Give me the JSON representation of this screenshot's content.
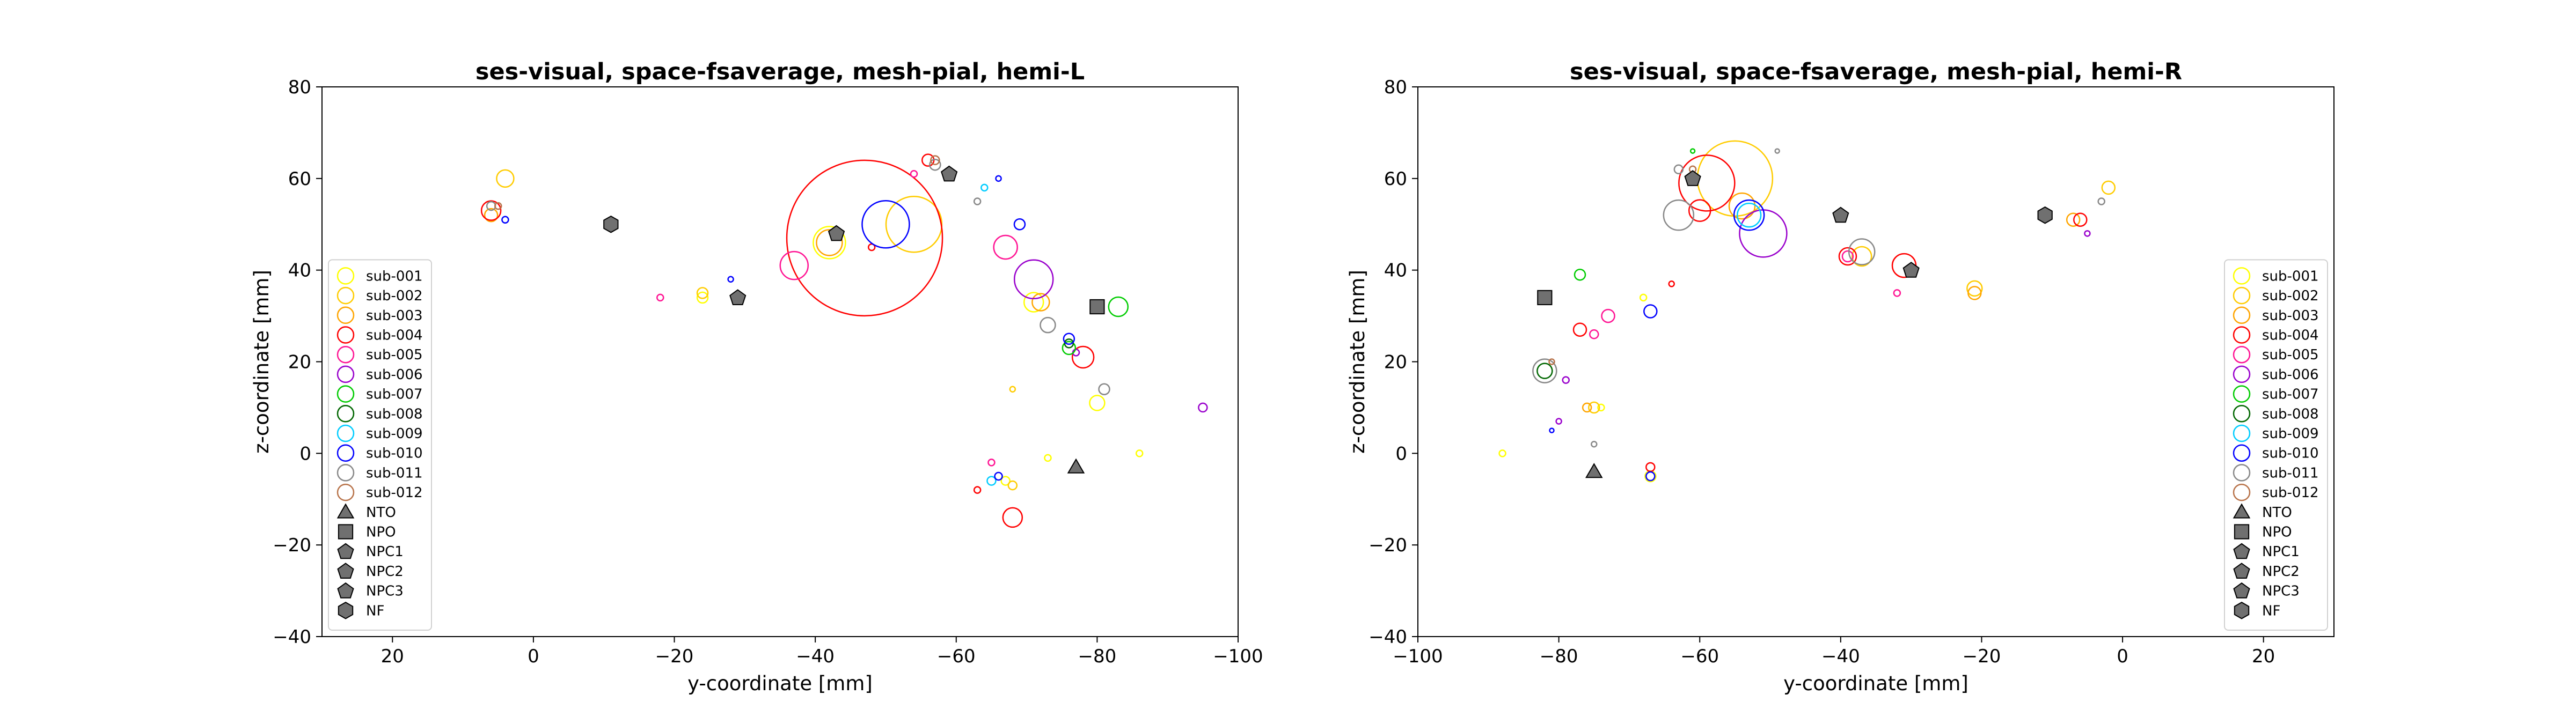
{
  "chart_data": [
    {
      "type": "scatter",
      "title": "ses-visual, space-fsaverage, mesh-pial, hemi-L",
      "xlabel": "y-coordinate [mm]",
      "ylabel": "z-coordinate [mm]",
      "xlim": [
        30,
        -100
      ],
      "ylim": [
        -40,
        80
      ],
      "xticks": [
        20,
        0,
        -20,
        -40,
        -60,
        -80,
        -100
      ],
      "xtick_labels": [
        "20",
        "0",
        "−20",
        "−40",
        "−60",
        "−80",
        "−100"
      ],
      "yticks": [
        80,
        60,
        40,
        20,
        0,
        -20,
        -40
      ],
      "ytick_labels": [
        "80",
        "60",
        "40",
        "20",
        "0",
        "−20",
        "−40"
      ],
      "grid": false,
      "legend_position": "lower-left",
      "legend": [
        "sub-001",
        "sub-002",
        "sub-003",
        "sub-004",
        "sub-005",
        "sub-006",
        "sub-007",
        "sub-008",
        "sub-009",
        "sub-010",
        "sub-011",
        "sub-012",
        "NTO",
        "NPO",
        "NPC1",
        "NPC2",
        "NPC3",
        "NF"
      ],
      "series": [
        {
          "name": "sub-001",
          "color": "#ffff00",
          "points": [
            {
              "x": -42,
              "y": 46,
              "r": 30
            },
            {
              "x": -71,
              "y": 33,
              "r": 18
            },
            {
              "x": -80,
              "y": 11,
              "r": 14
            },
            {
              "x": -24,
              "y": 34,
              "r": 10
            },
            {
              "x": -67,
              "y": -6,
              "r": 8
            },
            {
              "x": -86,
              "y": 0,
              "r": 6
            },
            {
              "x": -73,
              "y": -1,
              "r": 6
            }
          ]
        },
        {
          "name": "sub-002",
          "color": "#ffcc00",
          "points": [
            {
              "x": -54,
              "y": 50,
              "r": 52
            },
            {
              "x": 4,
              "y": 60,
              "r": 16
            },
            {
              "x": -24,
              "y": 35,
              "r": 10
            },
            {
              "x": -68,
              "y": -7,
              "r": 8
            },
            {
              "x": -68,
              "y": 14,
              "r": 5
            }
          ]
        },
        {
          "name": "sub-003",
          "color": "#ffa500",
          "points": [
            {
              "x": -72,
              "y": 33,
              "r": 16
            },
            {
              "x": -42,
              "y": 46,
              "r": 24
            },
            {
              "x": 6,
              "y": 52,
              "r": 12
            }
          ]
        },
        {
          "name": "sub-004",
          "color": "#ff0000",
          "points": [
            {
              "x": -47,
              "y": 47,
              "r": 145
            },
            {
              "x": -78,
              "y": 21,
              "r": 20
            },
            {
              "x": -68,
              "y": -14,
              "r": 18
            },
            {
              "x": 6,
              "y": 53,
              "r": 18
            },
            {
              "x": -56,
              "y": 64,
              "r": 11
            },
            {
              "x": -48,
              "y": 45,
              "r": 6
            },
            {
              "x": -63,
              "y": -8,
              "r": 6
            }
          ]
        },
        {
          "name": "sub-005",
          "color": "#ff1493",
          "points": [
            {
              "x": -37,
              "y": 41,
              "r": 26
            },
            {
              "x": -67,
              "y": 45,
              "r": 22
            },
            {
              "x": -18,
              "y": 34,
              "r": 6
            },
            {
              "x": -54,
              "y": 61,
              "r": 6
            },
            {
              "x": -65,
              "y": -2,
              "r": 6
            }
          ]
        },
        {
          "name": "sub-006",
          "color": "#9900cc",
          "points": [
            {
              "x": -71,
              "y": 38,
              "r": 36
            },
            {
              "x": -95,
              "y": 10,
              "r": 8
            },
            {
              "x": -77,
              "y": 22,
              "r": 6
            }
          ]
        },
        {
          "name": "sub-007",
          "color": "#00cc00",
          "points": [
            {
              "x": -83,
              "y": 32,
              "r": 18
            },
            {
              "x": -76,
              "y": 23,
              "r": 12
            }
          ]
        },
        {
          "name": "sub-008",
          "color": "#006600",
          "points": [
            {
              "x": -76,
              "y": 24,
              "r": 8
            }
          ]
        },
        {
          "name": "sub-009",
          "color": "#00ccff",
          "points": [
            {
              "x": -64,
              "y": 58,
              "r": 6
            },
            {
              "x": -65,
              "y": -6,
              "r": 8
            }
          ]
        },
        {
          "name": "sub-010",
          "color": "#0000ff",
          "points": [
            {
              "x": -50,
              "y": 50,
              "r": 44
            },
            {
              "x": -69,
              "y": 50,
              "r": 10
            },
            {
              "x": -76,
              "y": 25,
              "r": 10
            },
            {
              "x": -66,
              "y": 60,
              "r": 5
            },
            {
              "x": -66,
              "y": -5,
              "r": 7
            },
            {
              "x": -28,
              "y": 38,
              "r": 5
            },
            {
              "x": 4,
              "y": 51,
              "r": 6
            }
          ]
        },
        {
          "name": "sub-011",
          "color": "#888888",
          "points": [
            {
              "x": -73,
              "y": 28,
              "r": 14
            },
            {
              "x": -81,
              "y": 14,
              "r": 10
            },
            {
              "x": -57,
              "y": 63,
              "r": 10
            },
            {
              "x": -63,
              "y": 55,
              "r": 6
            },
            {
              "x": 6,
              "y": 54,
              "r": 8
            }
          ]
        },
        {
          "name": "sub-012",
          "color": "#b8734a",
          "points": [
            {
              "x": -57,
              "y": 64,
              "r": 8
            },
            {
              "x": 5,
              "y": 54,
              "r": 6
            }
          ]
        }
      ],
      "landmarks": [
        {
          "name": "NTO",
          "shape": "triangle",
          "x": -77,
          "y": -3
        },
        {
          "name": "NPO",
          "shape": "square",
          "x": -80,
          "y": 32
        },
        {
          "name": "NPC1",
          "shape": "pentagon",
          "x": -43,
          "y": 48
        },
        {
          "name": "NPC2",
          "shape": "pentagon",
          "x": -59,
          "y": 61
        },
        {
          "name": "NPC3",
          "shape": "pentagon",
          "x": -29,
          "y": 34
        },
        {
          "name": "NF",
          "shape": "hexagon",
          "x": -11,
          "y": 50
        }
      ]
    },
    {
      "type": "scatter",
      "title": "ses-visual, space-fsaverage, mesh-pial, hemi-R",
      "xlabel": "y-coordinate [mm]",
      "ylabel": "z-coordinate [mm]",
      "xlim": [
        -100,
        30
      ],
      "ylim": [
        -40,
        80
      ],
      "xticks": [
        -100,
        -80,
        -60,
        -40,
        -20,
        0,
        20
      ],
      "xtick_labels": [
        "−100",
        "−80",
        "−60",
        "−40",
        "−20",
        "0",
        "20"
      ],
      "yticks": [
        80,
        60,
        40,
        20,
        0,
        -20,
        -40
      ],
      "ytick_labels": [
        "80",
        "60",
        "40",
        "20",
        "0",
        "−20",
        "−40"
      ],
      "grid": false,
      "legend_position": "lower-right",
      "legend": [
        "sub-001",
        "sub-002",
        "sub-003",
        "sub-004",
        "sub-005",
        "sub-006",
        "sub-007",
        "sub-008",
        "sub-009",
        "sub-010",
        "sub-011",
        "sub-012",
        "NTO",
        "NPO",
        "NPC1",
        "NPC2",
        "NPC3",
        "NF"
      ],
      "series": [
        {
          "name": "sub-001",
          "color": "#ffff00",
          "points": [
            {
              "x": -67,
              "y": -5,
              "r": 10
            },
            {
              "x": -88,
              "y": 0,
              "r": 6
            },
            {
              "x": -74,
              "y": 10,
              "r": 6
            },
            {
              "x": -68,
              "y": 34,
              "r": 6
            }
          ]
        },
        {
          "name": "sub-002",
          "color": "#ffcc00",
          "points": [
            {
              "x": -55,
              "y": 60,
              "r": 70
            },
            {
              "x": -37,
              "y": 43,
              "r": 18
            },
            {
              "x": -21,
              "y": 36,
              "r": 14
            },
            {
              "x": -2,
              "y": 58,
              "r": 12
            },
            {
              "x": -75,
              "y": 10,
              "r": 10
            }
          ]
        },
        {
          "name": "sub-003",
          "color": "#ffa500",
          "points": [
            {
              "x": -54,
              "y": 54,
              "r": 24
            },
            {
              "x": -21,
              "y": 35,
              "r": 12
            },
            {
              "x": -7,
              "y": 51,
              "r": 12
            },
            {
              "x": -76,
              "y": 10,
              "r": 8
            }
          ]
        },
        {
          "name": "sub-004",
          "color": "#ff0000",
          "points": [
            {
              "x": -59,
              "y": 59,
              "r": 52
            },
            {
              "x": -31,
              "y": 41,
              "r": 22
            },
            {
              "x": -39,
              "y": 43,
              "r": 16
            },
            {
              "x": -60,
              "y": 53,
              "r": 20
            },
            {
              "x": -6,
              "y": 51,
              "r": 12
            },
            {
              "x": -77,
              "y": 27,
              "r": 12
            },
            {
              "x": -67,
              "y": -3,
              "r": 8
            },
            {
              "x": -64,
              "y": 37,
              "r": 5
            }
          ]
        },
        {
          "name": "sub-005",
          "color": "#ff1493",
          "points": [
            {
              "x": -73,
              "y": 30,
              "r": 12
            },
            {
              "x": -75,
              "y": 26,
              "r": 8
            },
            {
              "x": -32,
              "y": 35,
              "r": 6
            },
            {
              "x": -39,
              "y": 43,
              "r": 10
            }
          ]
        },
        {
          "name": "sub-006",
          "color": "#9900cc",
          "points": [
            {
              "x": -51,
              "y": 48,
              "r": 44
            },
            {
              "x": -79,
              "y": 16,
              "r": 6
            },
            {
              "x": -80,
              "y": 7,
              "r": 5
            },
            {
              "x": -5,
              "y": 48,
              "r": 5
            }
          ]
        },
        {
          "name": "sub-007",
          "color": "#00cc00",
          "points": [
            {
              "x": -77,
              "y": 39,
              "r": 10
            },
            {
              "x": -61,
              "y": 66,
              "r": 4
            }
          ]
        },
        {
          "name": "sub-008",
          "color": "#006600",
          "points": [
            {
              "x": -82,
              "y": 18,
              "r": 14
            }
          ]
        },
        {
          "name": "sub-009",
          "color": "#00ccff",
          "points": [
            {
              "x": -53,
              "y": 52,
              "r": 22
            }
          ]
        },
        {
          "name": "sub-010",
          "color": "#0000ff",
          "points": [
            {
              "x": -53,
              "y": 52,
              "r": 28
            },
            {
              "x": -67,
              "y": 31,
              "r": 12
            },
            {
              "x": -67,
              "y": -5,
              "r": 8
            },
            {
              "x": -81,
              "y": 5,
              "r": 4
            }
          ]
        },
        {
          "name": "sub-011",
          "color": "#888888",
          "points": [
            {
              "x": -63,
              "y": 52,
              "r": 28
            },
            {
              "x": -37,
              "y": 44,
              "r": 24
            },
            {
              "x": -82,
              "y": 18,
              "r": 22
            },
            {
              "x": -63,
              "y": 62,
              "r": 8
            },
            {
              "x": -75,
              "y": 2,
              "r": 5
            },
            {
              "x": -3,
              "y": 55,
              "r": 6
            },
            {
              "x": -49,
              "y": 66,
              "r": 4
            }
          ]
        },
        {
          "name": "sub-012",
          "color": "#b8734a",
          "points": [
            {
              "x": -61,
              "y": 62,
              "r": 6
            },
            {
              "x": -81,
              "y": 20,
              "r": 5
            }
          ]
        }
      ],
      "landmarks": [
        {
          "name": "NTO",
          "shape": "triangle",
          "x": -75,
          "y": -4
        },
        {
          "name": "NPO",
          "shape": "square",
          "x": -82,
          "y": 34
        },
        {
          "name": "NPC1",
          "shape": "pentagon",
          "x": -40,
          "y": 52
        },
        {
          "name": "NPC2",
          "shape": "pentagon",
          "x": -61,
          "y": 60
        },
        {
          "name": "NPC3",
          "shape": "pentagon",
          "x": -30,
          "y": 40
        },
        {
          "name": "NF",
          "shape": "hexagon",
          "x": -11,
          "y": 52
        }
      ]
    }
  ]
}
